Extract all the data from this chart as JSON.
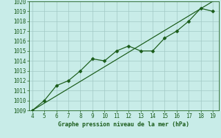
{
  "x": [
    4,
    5,
    6,
    7,
    8,
    9,
    10,
    11,
    12,
    13,
    14,
    15,
    16,
    17,
    18,
    19
  ],
  "y_data": [
    1009,
    1010,
    1011.5,
    1012,
    1013,
    1014.2,
    1014,
    1015,
    1015.5,
    1015,
    1015,
    1016.3,
    1017,
    1018,
    1019.3,
    1019
  ],
  "y_trend_x": [
    4,
    19
  ],
  "y_trend_y": [
    1009,
    1020
  ],
  "xlim": [
    3.7,
    19.5
  ],
  "ylim": [
    1009,
    1020
  ],
  "yticks": [
    1009,
    1010,
    1011,
    1012,
    1013,
    1014,
    1015,
    1016,
    1017,
    1018,
    1019,
    1020
  ],
  "xticks": [
    4,
    5,
    6,
    7,
    8,
    9,
    10,
    11,
    12,
    13,
    14,
    15,
    16,
    17,
    18,
    19
  ],
  "line_color": "#1a5c1a",
  "bg_color": "#c8ece8",
  "grid_color": "#a0c8c4",
  "xlabel": "Graphe pression niveau de la mer (hPa)",
  "xlabel_color": "#1a5c1a",
  "tick_fontsize": 5.5,
  "xlabel_fontsize": 6.0
}
